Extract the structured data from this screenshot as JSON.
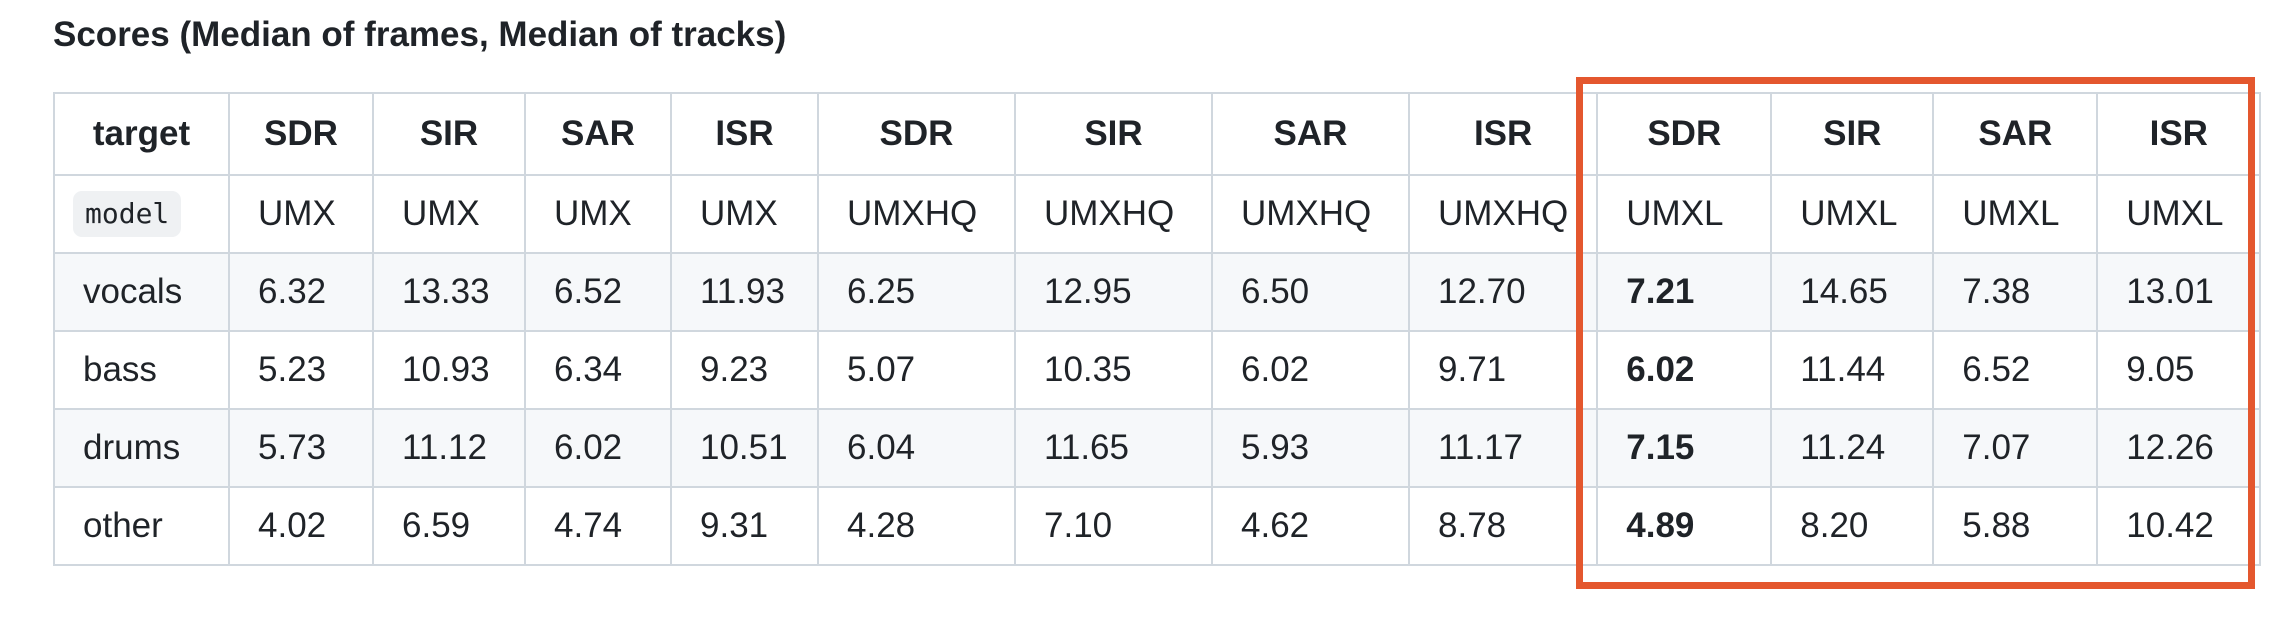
{
  "heading": "Scores (Median of frames, Median of tracks)",
  "table": {
    "headers": [
      "target",
      "SDR",
      "SIR",
      "SAR",
      "ISR",
      "SDR",
      "SIR",
      "SAR",
      "ISR",
      "SDR",
      "SIR",
      "SAR",
      "ISR"
    ],
    "model_label": "model",
    "models": [
      "UMX",
      "UMX",
      "UMX",
      "UMX",
      "UMXHQ",
      "UMXHQ",
      "UMXHQ",
      "UMXHQ",
      "UMXL",
      "UMXL",
      "UMXL",
      "UMXL"
    ],
    "rows": [
      {
        "target": "vocals",
        "values": [
          "6.32",
          "13.33",
          "6.52",
          "11.93",
          "6.25",
          "12.95",
          "6.50",
          "12.70",
          "7.21",
          "14.65",
          "7.38",
          "13.01"
        ]
      },
      {
        "target": "bass",
        "values": [
          "5.23",
          "10.93",
          "6.34",
          "9.23",
          "5.07",
          "10.35",
          "6.02",
          "9.71",
          "6.02",
          "11.44",
          "6.52",
          "9.05"
        ]
      },
      {
        "target": "drums",
        "values": [
          "5.73",
          "11.12",
          "6.02",
          "10.51",
          "6.04",
          "11.65",
          "5.93",
          "11.17",
          "7.15",
          "11.24",
          "7.07",
          "12.26"
        ]
      },
      {
        "target": "other",
        "values": [
          "4.02",
          "6.59",
          "4.74",
          "9.31",
          "4.28",
          "7.10",
          "4.62",
          "8.78",
          "4.89",
          "8.20",
          "5.88",
          "10.42"
        ]
      }
    ]
  },
  "highlight_color": "#e4572e"
}
